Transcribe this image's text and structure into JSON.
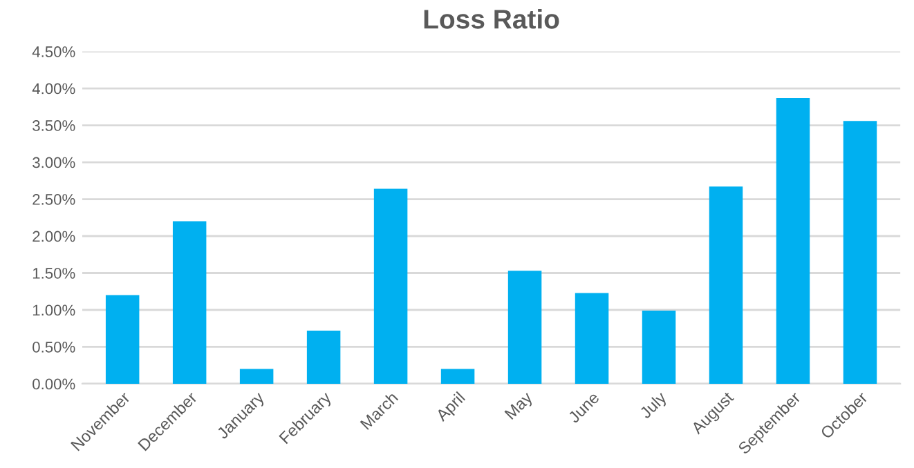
{
  "chart_data": {
    "type": "bar",
    "title": "Loss Ratio",
    "categories": [
      "November",
      "December",
      "January",
      "February",
      "March",
      "April",
      "May",
      "June",
      "July",
      "August",
      "September",
      "October"
    ],
    "values": [
      1.2,
      2.2,
      0.2,
      0.72,
      2.64,
      0.2,
      1.53,
      1.23,
      0.99,
      2.67,
      3.87,
      3.56
    ],
    "color": "#00b0f0",
    "ylim": [
      0,
      4.5
    ],
    "yticks": [
      {
        "value": 0,
        "label": "0.00%"
      },
      {
        "value": 0.5,
        "label": "0.50%"
      },
      {
        "value": 1,
        "label": "1.00%"
      },
      {
        "value": 1.5,
        "label": "1.50%"
      },
      {
        "value": 2,
        "label": "2.00%"
      },
      {
        "value": 2.5,
        "label": "2.50%"
      },
      {
        "value": 3,
        "label": "3.00%"
      },
      {
        "value": 3.5,
        "label": "3.50%"
      },
      {
        "value": 4,
        "label": "4.00%"
      },
      {
        "value": 4.5,
        "label": "4.50%"
      }
    ],
    "grid": "y",
    "legend": false
  }
}
